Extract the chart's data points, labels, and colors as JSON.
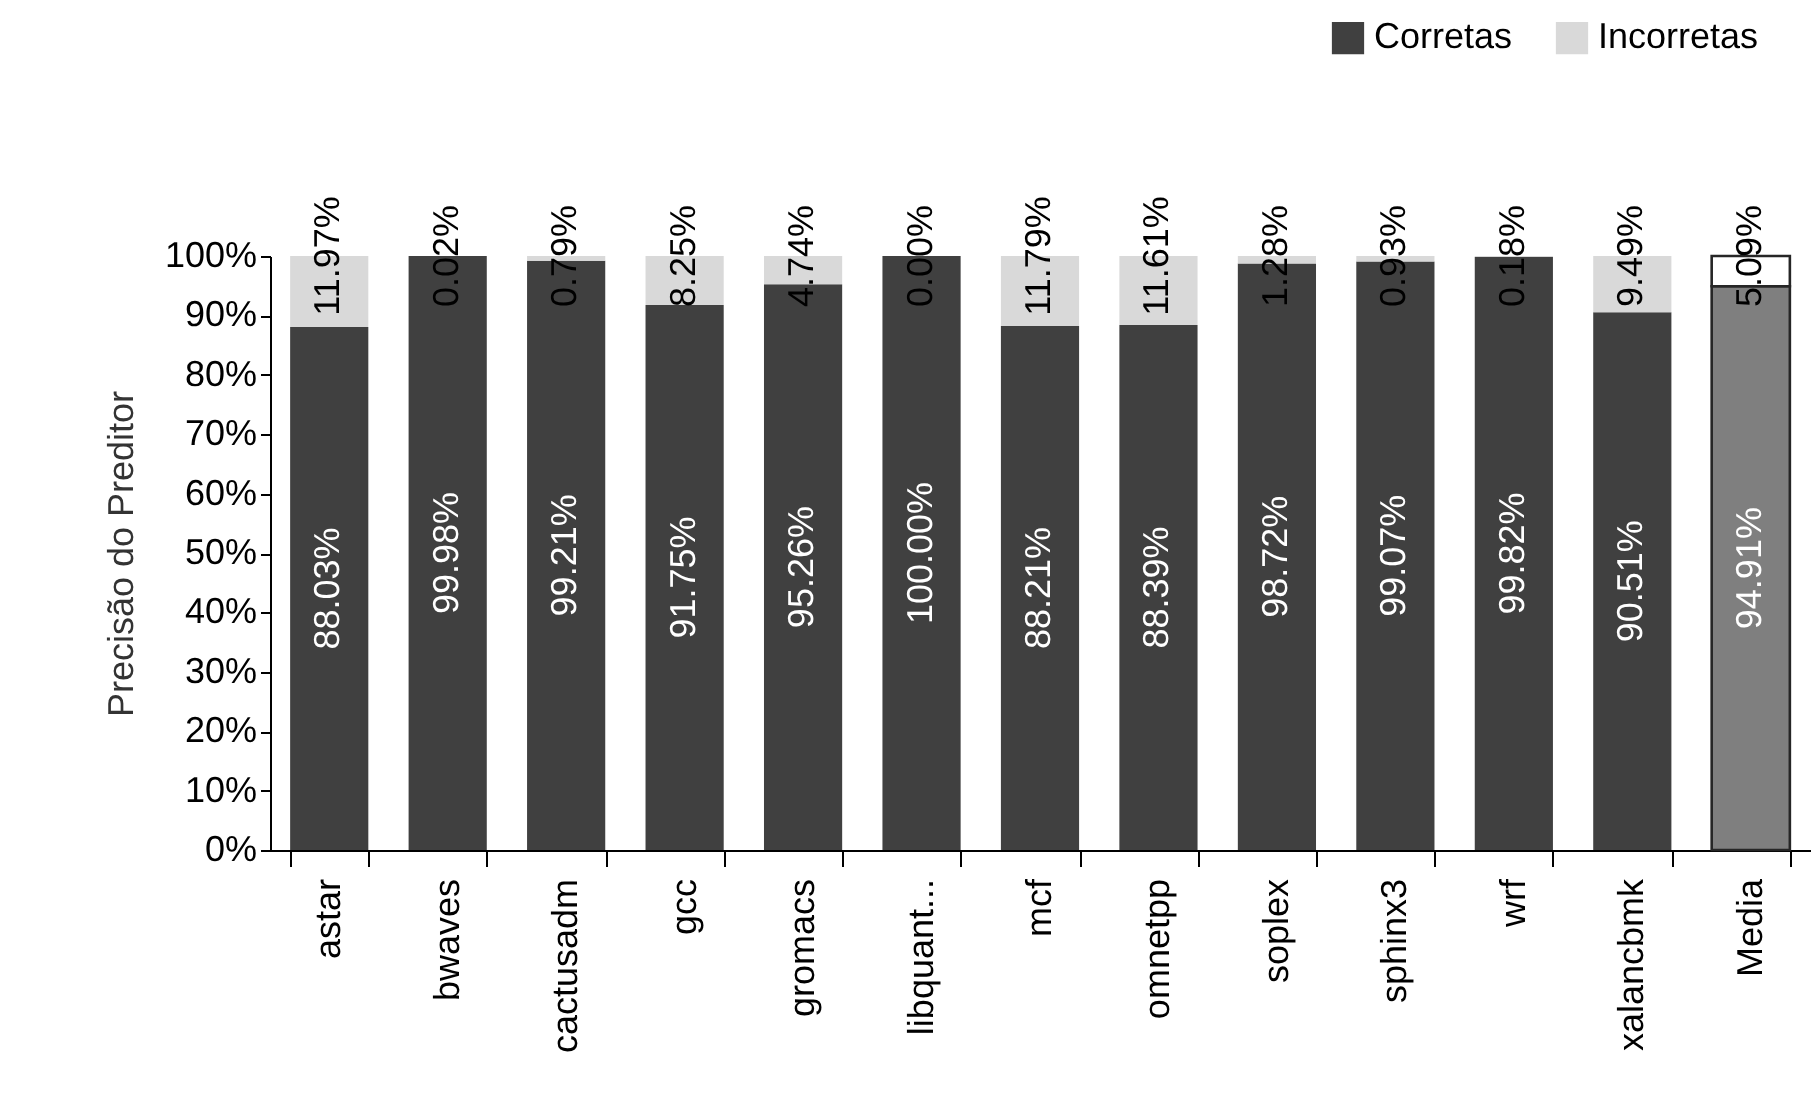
{
  "chart_data": {
    "type": "bar",
    "stacked": true,
    "ylabel": "Precisão do Preditor",
    "legend": "top right",
    "grid": false,
    "categories": [
      "astar",
      "bwaves",
      "cactusadm",
      "gcc",
      "gromacs",
      "libquant...",
      "mcf",
      "omnetpp",
      "soplex",
      "sphinx3",
      "wrf",
      "xalancbmk",
      "Media"
    ],
    "ylim": [
      0,
      100
    ],
    "yticks": [
      {
        "value": 0,
        "label": "0%"
      },
      {
        "value": 10,
        "label": "10%"
      },
      {
        "value": 20,
        "label": "20%"
      },
      {
        "value": 30,
        "label": "30%"
      },
      {
        "value": 40,
        "label": "40%"
      },
      {
        "value": 50,
        "label": "50%"
      },
      {
        "value": 60,
        "label": "60%"
      },
      {
        "value": 70,
        "label": "70%"
      },
      {
        "value": 80,
        "label": "80%"
      },
      {
        "value": 90,
        "label": "90%"
      },
      {
        "value": 100,
        "label": "100%"
      }
    ],
    "series": [
      {
        "name": "Corretas",
        "color": "#404040",
        "colors": [
          "#404040",
          "#404040",
          "#404040",
          "#404040",
          "#404040",
          "#404040",
          "#404040",
          "#404040",
          "#404040",
          "#404040",
          "#404040",
          "#404040",
          "#7f7f7f"
        ],
        "values": [
          88.03,
          99.98,
          99.21,
          91.75,
          95.26,
          100.0,
          88.21,
          88.39,
          98.72,
          99.07,
          99.82,
          90.51,
          94.91
        ],
        "value_labels": [
          "88.03%",
          "99.98%",
          "99.21%",
          "91.75%",
          "95.26%",
          "100.00%",
          "88.21%",
          "88.39%",
          "98.72%",
          "99.07%",
          "99.82%",
          "90.51%",
          "94.91%"
        ]
      },
      {
        "name": "Incorretas",
        "color": "#d9d9d9",
        "colors": [
          "#d9d9d9",
          "#d9d9d9",
          "#d9d9d9",
          "#d9d9d9",
          "#d9d9d9",
          "#d9d9d9",
          "#d9d9d9",
          "#d9d9d9",
          "#d9d9d9",
          "#d9d9d9",
          "#d9d9d9",
          "#d9d9d9",
          "#ffffff"
        ],
        "values": [
          11.97,
          0.02,
          0.79,
          8.25,
          4.74,
          0.0,
          11.79,
          11.61,
          1.28,
          0.93,
          0.18,
          9.49,
          5.09
        ],
        "value_labels": [
          "11.97%",
          "0.02%",
          "0.79%",
          "8.25%",
          "4.74%",
          "0.00%",
          "11.79%",
          "11.61%",
          "1.28%",
          "0.93%",
          "0.18%",
          "9.49%",
          "5.09%"
        ]
      }
    ]
  }
}
